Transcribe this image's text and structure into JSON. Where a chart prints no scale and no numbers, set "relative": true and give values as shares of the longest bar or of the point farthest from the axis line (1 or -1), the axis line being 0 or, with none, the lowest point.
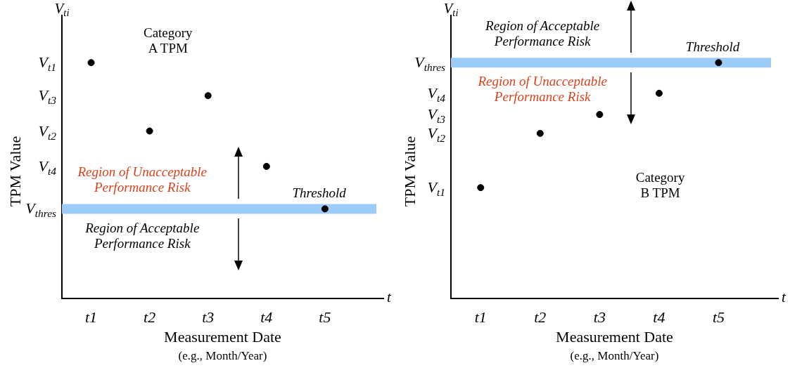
{
  "chart_data": [
    {
      "type": "scatter",
      "relative": true,
      "xlabel": "Measurement Date\n(e.g., Month/Year)",
      "ylabel": "TPM Value",
      "categories": [
        "t1",
        "t2",
        "t3",
        "t4",
        "t5"
      ],
      "series": [
        {
          "color": "#000000",
          "values": [
            1,
            0.71,
            0.86,
            0.56,
            0.38
          ]
        }
      ],
      "ref_lines": [
        {
          "axis": "y",
          "value": 0.38,
          "label": "Threshold",
          "color": "#9dcbf8"
        }
      ],
      "annotations": [
        "V$_{ti}$",
        "t",
        "Category\nA TPM",
        "Region of Unacceptable\nPerformance Risk",
        "Region of Acceptable\nPerformance Risk",
        "V$_{t1}$",
        "V$_{t3}$",
        "V$_{t2}$",
        "V$_{t4}$",
        "V$_{thres}$"
      ],
      "marker": "circle",
      "grid": false,
      "legend": false
    },
    {
      "type": "scatter",
      "relative": true,
      "xlabel": "Measurement Date\n(e.g., Month/Year)",
      "ylabel": "TPM Value",
      "categories": [
        "t1",
        "t2",
        "t3",
        "t4",
        "t5"
      ],
      "series": [
        {
          "color": "#000000",
          "values": [
            0.47,
            0.7,
            0.78,
            0.87,
            1
          ]
        }
      ],
      "ref_lines": [
        {
          "axis": "y",
          "value": 1,
          "label": "Threshold",
          "color": "#9dcbf8"
        }
      ],
      "annotations": [
        "V$_{ti}$",
        "t",
        "Category\nB TPM",
        "Region of Acceptable\nPerformance Risk",
        "Region of Unacceptable\nPerformance Risk",
        "V$_{thres}$",
        "V$_{t4}$",
        "V$_{t3}$",
        "V$_{t2}$",
        "V$_{t1}$"
      ],
      "marker": "circle",
      "grid": false,
      "legend": false
    }
  ]
}
